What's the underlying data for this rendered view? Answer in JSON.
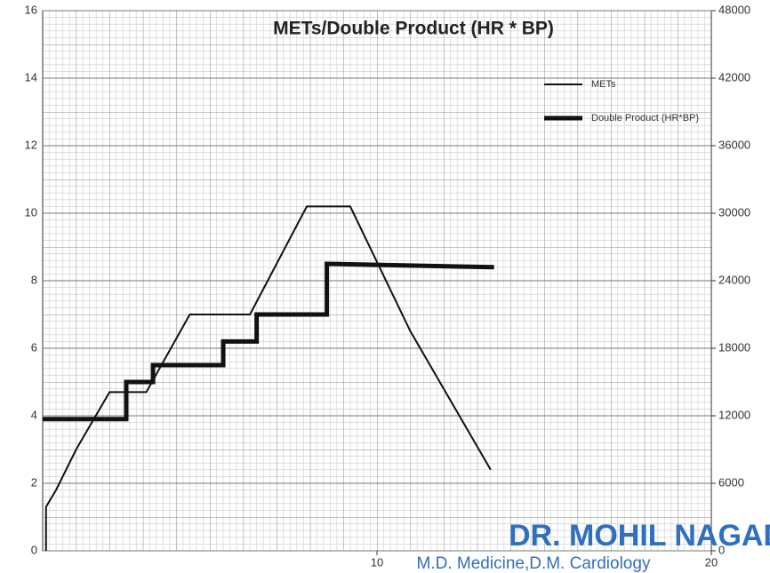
{
  "chart_data": {
    "type": "line",
    "title": "METs/Double Product (HR * BP)",
    "xlim": [
      0,
      20
    ],
    "xticks": [
      10,
      20
    ],
    "ylim": [
      0,
      16
    ],
    "yticks": [
      0,
      2,
      4,
      6,
      8,
      10,
      12,
      14,
      16
    ],
    "y2lim": [
      0,
      48000
    ],
    "y2ticks": [
      0,
      6000,
      12000,
      18000,
      24000,
      30000,
      36000,
      42000,
      48000
    ],
    "grid": true,
    "legend": "upper right",
    "series": [
      {
        "name": "METs",
        "color": "#111111",
        "width": 2,
        "x": [
          0.1,
          0.1,
          0.4,
          1,
          2,
          3.1,
          4.4,
          6.2,
          7.9,
          9.2,
          11,
          13.4
        ],
        "values": [
          0,
          1.3,
          1.8,
          3,
          4.7,
          4.7,
          7,
          7,
          10.2,
          10.2,
          6.5,
          2.4
        ]
      },
      {
        "name": "Double Product (HR*BP)",
        "color": "#111111",
        "width": 5,
        "axis": "y2",
        "x": [
          0,
          2.5,
          2.5,
          3.3,
          3.3,
          5.4,
          5.4,
          6.4,
          6.4,
          8.5,
          8.5,
          13.5
        ],
        "values": [
          11700,
          11700,
          15000,
          15000,
          16500,
          16500,
          18600,
          18600,
          21000,
          21000,
          25500,
          25200
        ]
      }
    ],
    "annotations": [
      "DR. MOHIL NAGAD",
      "M.D. Medicine,D.M. Cardiology"
    ]
  }
}
